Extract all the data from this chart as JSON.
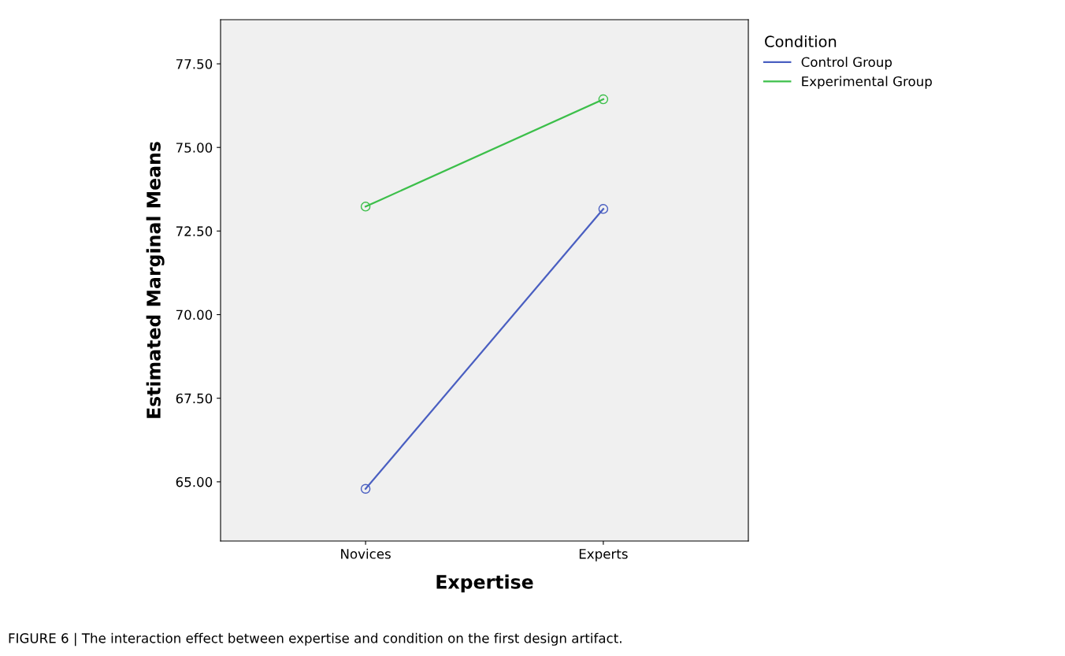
{
  "chart_data": {
    "type": "line",
    "categories": [
      "Novices",
      "Experts"
    ],
    "series": [
      {
        "name": "Control Group",
        "color": "#4a5fc1",
        "values": [
          64.79,
          73.16
        ]
      },
      {
        "name": "Experimental Group",
        "color": "#3cbf4a",
        "values": [
          73.23,
          76.44
        ]
      }
    ],
    "xlabel": "Expertise",
    "ylabel": "Estimated Marginal Means",
    "legend_title": "Condition",
    "ylim": [
      63.23,
      78.82
    ],
    "yticks": [
      {
        "value": 65,
        "label": "65.00"
      },
      {
        "value": 67.5,
        "label": "67.50"
      },
      {
        "value": 70,
        "label": "70.00"
      },
      {
        "value": 72.5,
        "label": "72.50"
      },
      {
        "value": 75,
        "label": "75.00"
      },
      {
        "value": 77.5,
        "label": "77.50"
      }
    ],
    "marker": "circle",
    "line_style": "solid",
    "grid": false,
    "legend": "top right",
    "annotations": [
      "FIGURE 6 | The interaction effect between expertise and condition on the first design artifact."
    ]
  }
}
